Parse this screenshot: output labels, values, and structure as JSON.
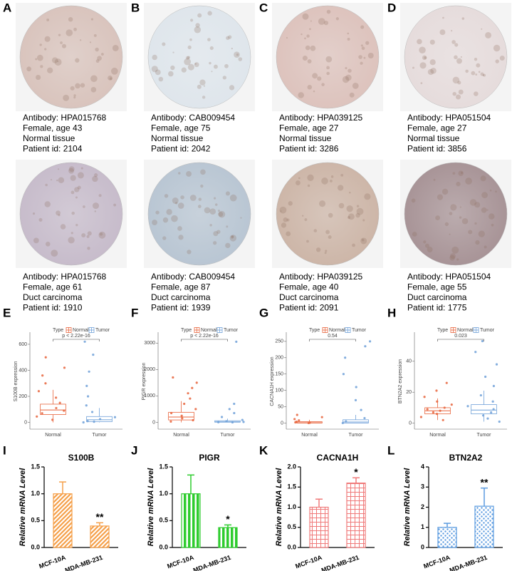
{
  "tissue_panels": [
    {
      "letter": "A",
      "color": "#d9c4bd",
      "lines": [
        "Antibody: HPA015768",
        "Female, age 43",
        "Normal tissue",
        "Patient id: 2104"
      ]
    },
    {
      "letter": "B",
      "color": "#dfe6ec",
      "lines": [
        "Antibody: CAB009454",
        "Female, age 75",
        "Normal tissue",
        "Patient id: 2042"
      ]
    },
    {
      "letter": "C",
      "color": "#ddc3bd",
      "lines": [
        "Antibody: HPA039125",
        "Female, age 27",
        "Normal tissue",
        "Patient id: 3286"
      ]
    },
    {
      "letter": "D",
      "color": "#e6dcdc",
      "lines": [
        "Antibody: HPA051504",
        "Female, age 27",
        "Normal tissue",
        "Patient id: 3856"
      ]
    },
    {
      "color": "#c7bccb",
      "lines": [
        "Antibody: HPA015768",
        "Female, age 61",
        "Duct carcinoma",
        "Patient id: 1910"
      ]
    },
    {
      "color": "#b9c6d3",
      "lines": [
        "Antibody: CAB009454",
        "Female, age 87",
        "Duct carcinoma",
        "Patient id: 1939"
      ]
    },
    {
      "color": "#cdb6a8",
      "lines": [
        "Antibody: HPA039125",
        "Female, age 40",
        "Duct carcinoma",
        "Patient id: 2091"
      ]
    },
    {
      "color": "#a89497",
      "lines": [
        "Antibody: HPA051504",
        "Female, age 55",
        "Duct carcinoma",
        "Patient id: 1775"
      ]
    }
  ],
  "chart_data": [
    {
      "type": "box",
      "letter": "E",
      "ylabel": "S100B expression",
      "legend_title": "Type",
      "annotation": "p < 2.22e-16",
      "categories": [
        "Normal",
        "Tumor"
      ],
      "ylim": [
        -30,
        660
      ],
      "yticks": [
        0,
        200,
        400,
        600
      ],
      "series": [
        {
          "name": "Normal",
          "color": "#e8643c",
          "box": {
            "whislo": 0,
            "q1": 60,
            "median": 95,
            "q3": 140,
            "whishi": 250
          },
          "points": [
            20,
            45,
            70,
            90,
            110,
            150,
            190,
            240,
            300,
            360,
            420,
            500
          ]
        },
        {
          "name": "Tumor",
          "color": "#6fa0d8",
          "box": {
            "whislo": 0,
            "q1": 5,
            "median": 20,
            "q3": 45,
            "whishi": 110
          },
          "points": [
            0,
            5,
            10,
            25,
            40,
            80,
            130,
            200,
            280,
            390,
            520,
            620
          ]
        }
      ]
    },
    {
      "type": "box",
      "letter": "F",
      "ylabel": "PIGR expression",
      "legend_title": "Type",
      "annotation": "p < 2.22e-16",
      "categories": [
        "Normal",
        "Tumor"
      ],
      "ylim": [
        -150,
        3250
      ],
      "yticks": [
        0,
        1000,
        2000,
        3000
      ],
      "series": [
        {
          "name": "Normal",
          "color": "#e8643c",
          "box": {
            "whislo": 0,
            "q1": 90,
            "median": 200,
            "q3": 380,
            "whishi": 800
          },
          "points": [
            30,
            80,
            150,
            250,
            350,
            500,
            700,
            900,
            1100,
            1300,
            1500,
            1700
          ]
        },
        {
          "name": "Tumor",
          "color": "#6fa0d8",
          "box": {
            "whislo": 0,
            "q1": 5,
            "median": 20,
            "q3": 60,
            "whishi": 140
          },
          "points": [
            0,
            5,
            15,
            40,
            90,
            200,
            350,
            500,
            700,
            3050
          ]
        }
      ]
    },
    {
      "type": "box",
      "letter": "G",
      "ylabel": "CACNA1H expression",
      "legend_title": "Type",
      "annotation": "0.54",
      "categories": [
        "Normal",
        "Tumor"
      ],
      "ylim": [
        -10,
        265
      ],
      "yticks": [
        0,
        50,
        100,
        150,
        200,
        250
      ],
      "series": [
        {
          "name": "Normal",
          "color": "#e8643c",
          "box": {
            "whislo": 0,
            "q1": 0,
            "median": 1,
            "q3": 4,
            "whishi": 10
          },
          "points": [
            0,
            1,
            2,
            4,
            8,
            12,
            18,
            25
          ]
        },
        {
          "name": "Tumor",
          "color": "#6fa0d8",
          "box": {
            "whislo": 0,
            "q1": 0,
            "median": 3,
            "q3": 10,
            "whishi": 25
          },
          "points": [
            0,
            5,
            15,
            40,
            70,
            110,
            150,
            200,
            235,
            250
          ]
        }
      ]
    },
    {
      "type": "box",
      "letter": "H",
      "ylabel": "BTN2A2 expression",
      "legend_title": "Type",
      "annotation": "0.023",
      "categories": [
        "Normal",
        "Tumor"
      ],
      "ylim": [
        -2,
        56
      ],
      "yticks": [
        0,
        20,
        40
      ],
      "series": [
        {
          "name": "Normal",
          "color": "#e8643c",
          "box": {
            "whislo": 2,
            "q1": 6,
            "median": 8,
            "q3": 10,
            "whishi": 16
          },
          "points": [
            2,
            4,
            6,
            7,
            8,
            9,
            10,
            12,
            14,
            17,
            21,
            26
          ]
        },
        {
          "name": "Tumor",
          "color": "#6fa0d8",
          "box": {
            "whislo": 1,
            "q1": 6,
            "median": 8.5,
            "q3": 12,
            "whishi": 21
          },
          "points": [
            1,
            3,
            5,
            7,
            9,
            11,
            14,
            18,
            24,
            30,
            38,
            46,
            53
          ]
        }
      ]
    },
    {
      "type": "bar",
      "letter": "I",
      "title": "S100B",
      "ylabel": "Relative mRNA Level",
      "categories": [
        "MCF-10A",
        "MDA-MB-231"
      ],
      "values": [
        1.0,
        0.4
      ],
      "errors": [
        0.22,
        0.06
      ],
      "significance": [
        null,
        "**"
      ],
      "color": "#f5a04a",
      "pattern": "diagonal",
      "ylim": [
        0,
        1.5
      ],
      "yticks": [
        {
          "value": 0,
          "label": "0.0"
        },
        0.5,
        {
          "value": 1,
          "label": "1.0"
        },
        1.5
      ]
    },
    {
      "type": "bar",
      "letter": "J",
      "title": "PIGR",
      "ylabel": "Relative mRNA Level",
      "categories": [
        "MCF-10A",
        "MDA-MB-231"
      ],
      "values": [
        1.0,
        0.37
      ],
      "errors": [
        0.35,
        0.05
      ],
      "significance": [
        null,
        "*"
      ],
      "color": "#2ecc2e",
      "pattern": "vertical",
      "ylim": [
        0,
        1.5
      ],
      "yticks": [
        {
          "value": 0,
          "label": "0.0"
        },
        0.5,
        {
          "value": 1,
          "label": "1.0"
        },
        1.5
      ]
    },
    {
      "type": "bar",
      "letter": "K",
      "title": "CACNA1H",
      "ylabel": "Relative mRNA Level",
      "categories": [
        "MCF-10A",
        "MDA-MB-231"
      ],
      "values": [
        1.0,
        1.6
      ],
      "errors": [
        0.2,
        0.13
      ],
      "significance": [
        null,
        "*"
      ],
      "color": "#f07a7a",
      "pattern": "grid",
      "ylim": [
        0,
        2
      ],
      "yticks": [
        {
          "value": 0,
          "label": "0.0"
        },
        0.5,
        {
          "value": 1,
          "label": "1.0"
        },
        1.5,
        {
          "value": 2,
          "label": "2.0"
        }
      ]
    },
    {
      "type": "bar",
      "letter": "L",
      "title": "BTN2A2",
      "ylabel": "Relative mRNA Level",
      "categories": [
        "MCF-10A",
        "MDA-MB-231"
      ],
      "values": [
        1.0,
        2.05
      ],
      "errors": [
        0.2,
        0.9
      ],
      "significance": [
        null,
        "**"
      ],
      "color": "#5b9be0",
      "pattern": "dots",
      "ylim": [
        0,
        4
      ],
      "yticks": [
        0,
        1,
        2,
        3,
        4
      ]
    }
  ]
}
